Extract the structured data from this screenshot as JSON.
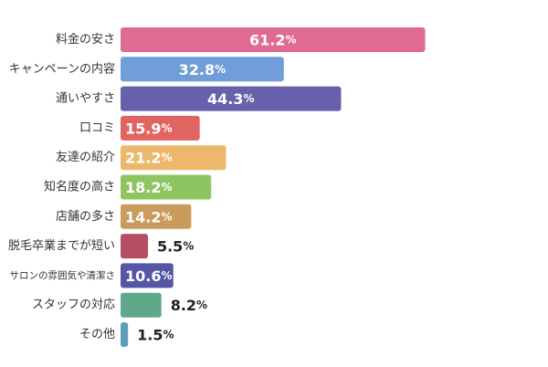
{
  "chart_data": {
    "type": "bar",
    "orientation": "horizontal",
    "categories": [
      "料金の安さ",
      "キャンペーンの内容",
      "通いやすさ",
      "口コミ",
      "友達の紹介",
      "知名度の高さ",
      "店舗の多さ",
      "脱毛卒業までが短い",
      "サロンの雰囲気や清潔さ",
      "スタッフの対応",
      "その他"
    ],
    "values": [
      61.2,
      32.8,
      44.3,
      15.9,
      21.2,
      18.2,
      14.2,
      5.5,
      10.6,
      8.2,
      1.5
    ],
    "value_labels": [
      "61.2",
      "32.8",
      "44.3",
      "15.9",
      "21.2",
      "18.2",
      "14.2",
      "5.5",
      "10.6",
      "8.2",
      "1.5"
    ],
    "unit": "%",
    "colors": [
      "#e06a91",
      "#6f9ed8",
      "#6760ab",
      "#e06462",
      "#eeb86c",
      "#8fc561",
      "#c99b5c",
      "#b64e63",
      "#5457a7",
      "#5fa88a",
      "#5a9eb7"
    ],
    "title": "",
    "xlabel": "",
    "ylabel": "",
    "grid": false,
    "legend": "none"
  }
}
